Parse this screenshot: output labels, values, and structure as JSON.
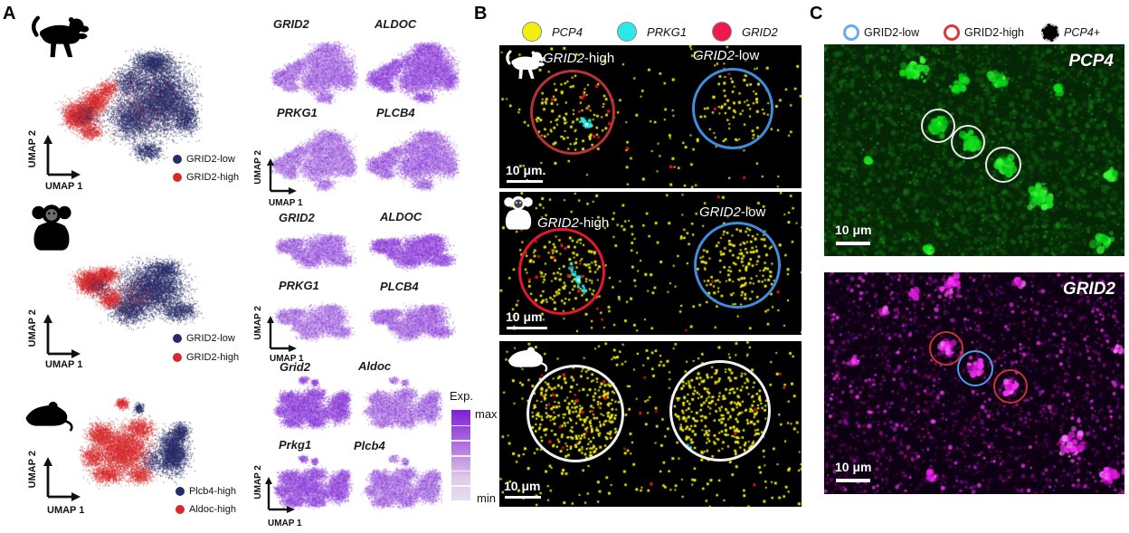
{
  "axis": {
    "x": "UMAP 1",
    "y": "UMAP 2"
  },
  "colors": {
    "navy": "#272b66",
    "red": "#d62b2e",
    "purple_deep": "#7d1fd6",
    "purple_light": "#e6dcf2",
    "yellow": "#f2ef0f",
    "cyan": "#2ce8e8",
    "crimson": "#ee1851",
    "circle_red_dark": "#b93038",
    "circle_red": "#e8162c",
    "circle_blue": "#3f8ede",
    "circle_white": "#f2f2f2",
    "legend_blue": "#66aaf2",
    "legend_red": "#dd3838",
    "img_red": "#c63333",
    "img_blue": "#4b9fe8",
    "green": "#17dd1f",
    "magenta": "#e316e3"
  },
  "panelA": {
    "label": "A",
    "rows": [
      {
        "species": "macaque",
        "legend": [
          {
            "label": "GRID2-low"
          },
          {
            "label": "GRID2-high"
          }
        ],
        "features": [
          {
            "label": "GRID2"
          },
          {
            "label": "ALDOC"
          },
          {
            "label": "PRKG1"
          },
          {
            "label": "PLCB4"
          }
        ]
      },
      {
        "species": "marmoset",
        "legend": [
          {
            "label": "GRID2-low"
          },
          {
            "label": "GRID2-high"
          }
        ],
        "features": [
          {
            "label": "GRID2"
          },
          {
            "label": "ALDOC"
          },
          {
            "label": "PRKG1"
          },
          {
            "label": "PLCB4"
          }
        ]
      },
      {
        "species": "mouse",
        "legend": [
          {
            "label": "Plcb4-high"
          },
          {
            "label": "Aldoc-high"
          }
        ],
        "features": [
          {
            "label": "Grid2"
          },
          {
            "label": "Aldoc"
          },
          {
            "label": "Prkg1"
          },
          {
            "label": "Plcb4"
          }
        ]
      }
    ],
    "colorbar": {
      "title": "Exp.",
      "max": "max",
      "min": "min"
    }
  },
  "panelB": {
    "label": "B",
    "legend": [
      {
        "gene": "PCP4"
      },
      {
        "gene": "PRKG1"
      },
      {
        "gene": "GRID2"
      }
    ],
    "images": [
      {
        "species": "macaque",
        "high_gene": "GRID2",
        "high_suffix": "-high",
        "low_gene": "GRID2",
        "low_suffix": "-low",
        "scalebar": "10 μm."
      },
      {
        "species": "marmoset",
        "high_gene": "GRID2",
        "high_suffix": "-high",
        "low_gene": "GRID2",
        "low_suffix": "-low",
        "scalebar": "10 μm"
      },
      {
        "species": "mouse",
        "scalebar": "10 μm"
      }
    ]
  },
  "panelC": {
    "label": "C",
    "legend": [
      {
        "label": "GRID2-low"
      },
      {
        "label": "GRID2-high"
      },
      {
        "label": "PCP4+"
      }
    ],
    "images": [
      {
        "gene": "PCP4",
        "scalebar": "10 μm"
      },
      {
        "gene": "GRID2",
        "scalebar": "10 μm"
      }
    ]
  }
}
